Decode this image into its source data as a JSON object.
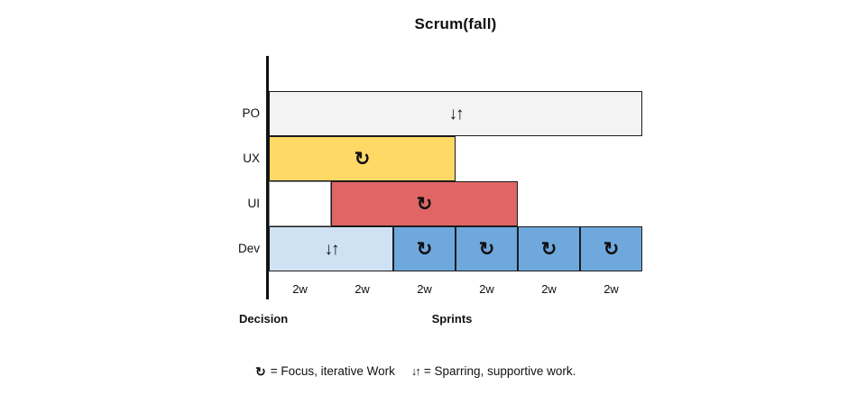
{
  "title": "Scrum(fall)",
  "icons": {
    "focus": "↻",
    "sparring": "↓↑"
  },
  "axis": {
    "decision_label": "Decision",
    "sprints_label": "Sprints"
  },
  "legend": [
    {
      "icon": "focus",
      "text": "= Focus, iterative Work"
    },
    {
      "icon": "sparring",
      "text": "= Sparring, supportive work."
    }
  ],
  "chart_data": {
    "type": "bar",
    "subtype": "gantt-timeline",
    "title": "Scrum(fall)",
    "unit": "sprint",
    "num_sprints": 6,
    "sprint_labels": [
      "2w",
      "2w",
      "2w",
      "2w",
      "2w",
      "2w"
    ],
    "phase_labels": {
      "decision": "Decision",
      "execution": "Sprints"
    },
    "palette": {
      "gray": "#F3F3F3",
      "yellow": "#FFD966",
      "red": "#E06666",
      "lightblue": "#CFE2F3",
      "blue": "#6FA8DC",
      "white": "#FFFFFF"
    },
    "icon_meanings": {
      "focus": "Focus, iterative Work",
      "sparring": "Sparring, supportive work."
    },
    "rows": [
      {
        "label": "PO",
        "segments": [
          {
            "start": 0,
            "span": 6,
            "style": "gray",
            "icon": "sparring"
          }
        ]
      },
      {
        "label": "UX",
        "segments": [
          {
            "start": 0,
            "span": 3,
            "style": "yellow",
            "icon": "focus"
          }
        ]
      },
      {
        "label": "UI",
        "segments": [
          {
            "start": 0,
            "span": 1,
            "style": "white",
            "icon": null
          },
          {
            "start": 1,
            "span": 3,
            "style": "red",
            "icon": "focus"
          }
        ]
      },
      {
        "label": "Dev",
        "segments": [
          {
            "start": 0,
            "span": 2,
            "style": "lightblue",
            "icon": "sparring"
          },
          {
            "start": 2,
            "span": 1,
            "style": "blue",
            "icon": "focus"
          },
          {
            "start": 3,
            "span": 1,
            "style": "blue",
            "icon": "focus"
          },
          {
            "start": 4,
            "span": 1,
            "style": "blue",
            "icon": "focus"
          },
          {
            "start": 5,
            "span": 1,
            "style": "blue",
            "icon": "focus"
          }
        ]
      }
    ]
  }
}
